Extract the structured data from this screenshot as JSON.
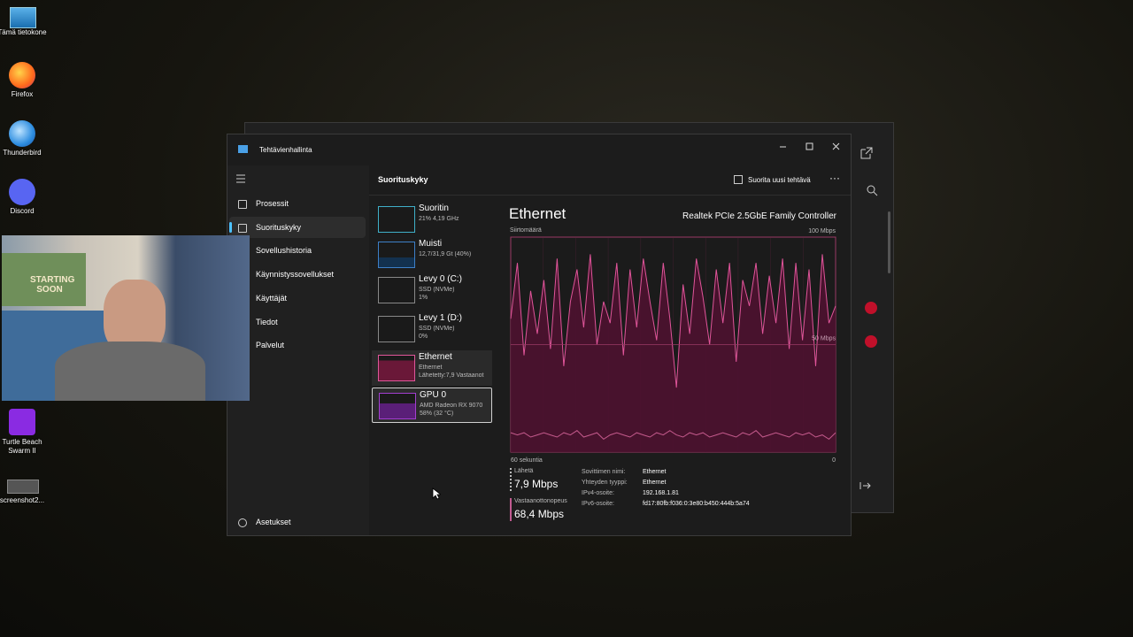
{
  "desktop": {
    "icons": [
      "Tämä tietokone",
      "Firefox",
      "Thunderbird",
      "Discord",
      "Turtle Beach Swarm II",
      "screenshot2..."
    ]
  },
  "webcam": {
    "poster": "STARTING SOON"
  },
  "task_manager": {
    "title": "Tehtävienhallinta",
    "nav": [
      "Prosessit",
      "Suorituskyky",
      "Sovellushistoria",
      "Käynnistyssovellukset",
      "Käyttäjät",
      "Tiedot",
      "Palvelut"
    ],
    "settings": "Asetukset",
    "header": {
      "title": "Suorituskyky",
      "run_task": "Suorita uusi tehtävä"
    },
    "devices": [
      {
        "name": "Suoritin",
        "lines": [
          "21% 4,19 GHz"
        ]
      },
      {
        "name": "Muisti",
        "lines": [
          "12,7/31,9 Gt (40%)"
        ]
      },
      {
        "name": "Levy 0 (C:)",
        "lines": [
          "SSD (NVMe)",
          "1%"
        ]
      },
      {
        "name": "Levy 1 (D:)",
        "lines": [
          "SSD (NVMe)",
          "0%"
        ]
      },
      {
        "name": "Ethernet",
        "lines": [
          "Ethernet",
          "Lähetetty:7,9 Vastaanot"
        ]
      },
      {
        "name": "GPU 0",
        "lines": [
          "AMD Radeon RX 9070",
          "58% (32 °C)"
        ]
      }
    ],
    "detail": {
      "title": "Ethernet",
      "adapter": "Realtek PCIe 2.5GbE Family Controller",
      "graph": {
        "y_label": "Siirtomäärä",
        "ylim": [
          0,
          100
        ],
        "yticks": [
          {
            "value": 50,
            "label": "50 Mbps"
          },
          {
            "value": 100,
            "label": "100 Mbps"
          }
        ],
        "x_labels": [
          "60 sekuntia",
          "0"
        ],
        "series": [
          {
            "color": "#e0559a",
            "values": [
              62,
              88,
              45,
              75,
              55,
              80,
              48,
              90,
              40,
              70,
              85,
              58,
              92,
              50,
              70,
              60,
              88,
              45,
              85,
              58,
              90,
              70,
              52,
              88,
              62,
              30,
              78,
              55,
              90,
              72,
              50,
              85,
              60,
              88,
              42,
              80,
              68,
              88,
              55,
              82,
              60,
              90,
              48,
              88,
              52,
              85,
              40,
              92,
              60,
              68
            ]
          },
          {
            "color": "#c45a8c",
            "values": [
              9,
              8,
              9,
              7,
              8,
              9,
              8,
              7,
              9,
              8,
              10,
              7,
              8,
              9,
              6,
              8,
              9,
              8,
              7,
              9,
              8,
              7,
              9,
              8,
              10,
              8,
              7,
              9,
              8,
              9,
              7,
              8,
              9,
              8,
              7,
              9,
              8,
              10,
              7,
              8,
              9,
              8,
              7,
              9,
              8,
              9,
              7,
              8,
              6,
              9
            ]
          }
        ]
      },
      "stats": [
        {
          "label": "Lähetä",
          "value": "7,9 Mbps"
        },
        {
          "label": "Vastaanottonopeus",
          "value": "68,4 Mbps"
        }
      ],
      "properties": [
        [
          "Sovittimen nimi:",
          "Ethernet"
        ],
        [
          "Yhteyden tyyppi:",
          "Ethernet"
        ],
        [
          "IPv4-osoite:",
          "192.168.1.81"
        ],
        [
          "IPv6-osoite:",
          "fd17:80fb:f036:0:3e80:b450:444b:5a74"
        ]
      ]
    }
  }
}
